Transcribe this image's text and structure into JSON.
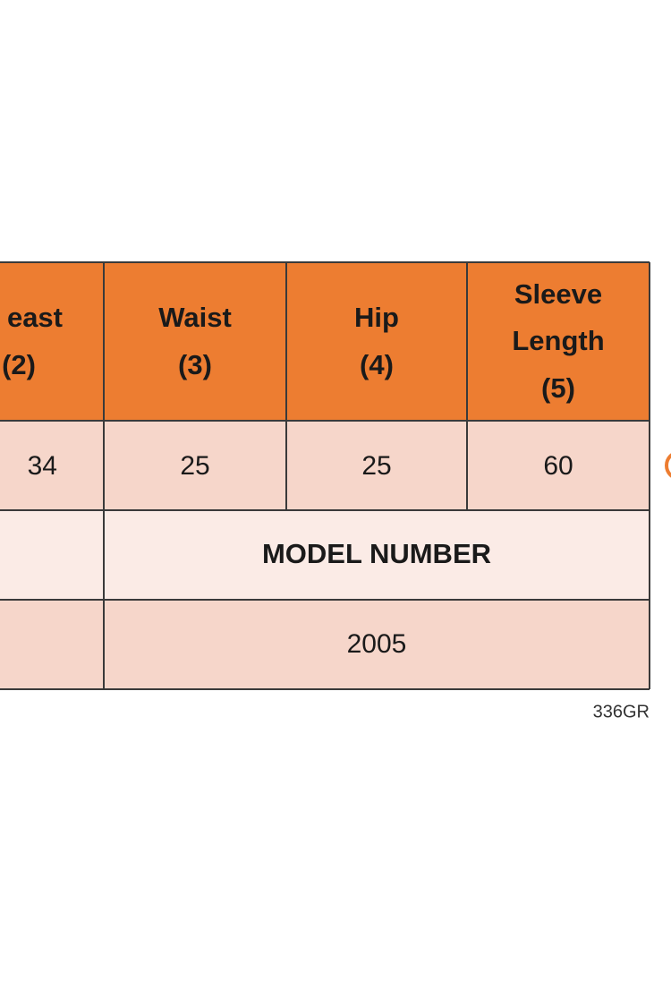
{
  "table": {
    "header": [
      [
        "east",
        "(2)"
      ],
      [
        "Waist",
        "(3)"
      ],
      [
        "Hip",
        "(4)"
      ],
      [
        "Sleeve",
        "Length",
        "(5)"
      ]
    ],
    "rows": [
      [
        "34",
        "25",
        "25",
        "60"
      ],
      [
        "MODEL NUMBER"
      ],
      [
        "2005"
      ]
    ]
  },
  "footer": "336GR"
}
